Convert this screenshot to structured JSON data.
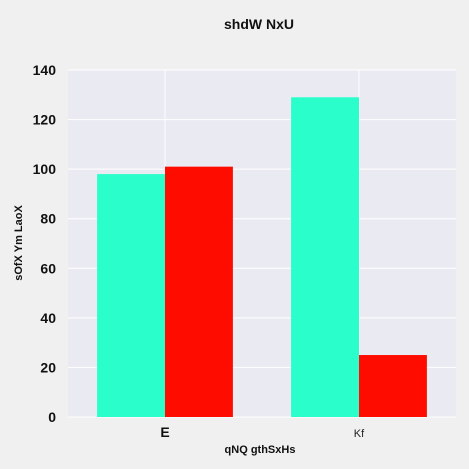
{
  "chart_data": {
    "type": "bar",
    "title": "shdW NxU",
    "xlabel": "qNQ  gthSxHs",
    "ylabel": "sOfX Ym LaoX",
    "categories": [
      "E",
      "Kf"
    ],
    "series": [
      {
        "values": [
          98,
          129
        ],
        "color": "#2affcc"
      },
      {
        "values": [
          101,
          25
        ],
        "color": "#ff0c00"
      }
    ],
    "ylim": [
      0,
      140
    ],
    "yticks": [
      0,
      20,
      40,
      60,
      80,
      100,
      120,
      140
    ],
    "grid": true,
    "plot_background": "#eaeaf2"
  }
}
